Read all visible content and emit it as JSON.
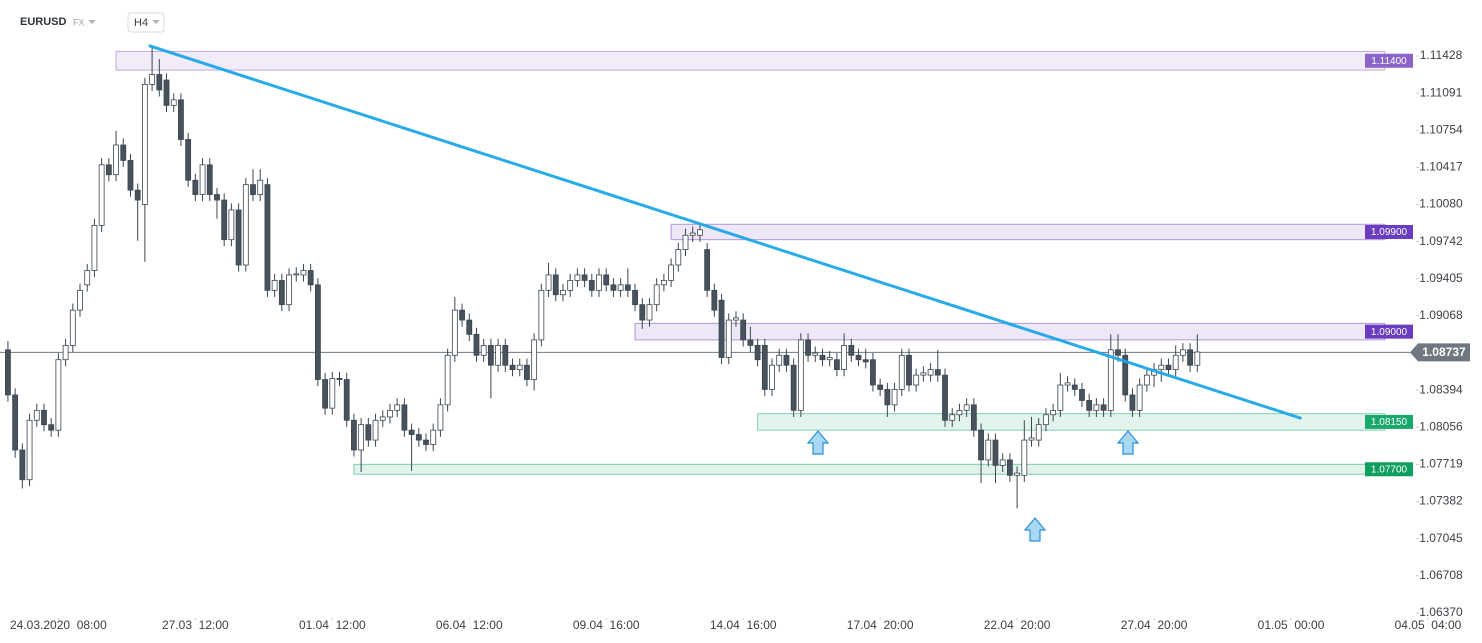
{
  "chart_data": {
    "type": "candlestick",
    "symbol": "EURUSD",
    "market": "FX",
    "interval": "H4",
    "open": [
      1.0876,
      1.0835,
      1.0785,
      1.0758,
      1.0812,
      1.0821,
      1.0808,
      1.0803,
      1.0867,
      1.088,
      1.0912,
      1.0935,
      1.0948,
      1.0989,
      1.1044,
      1.1035,
      1.1062,
      1.1048,
      1.1021,
      1.1008,
      1.1117,
      1.1126,
      1.1121,
      1.1098,
      1.1103,
      1.1067,
      1.103,
      1.1017,
      1.1044,
      1.1017,
      1.1012,
      1.0976,
      1.1003,
      1.0953,
      1.1026,
      1.1017,
      1.1026,
      1.093,
      1.0939,
      1.0917,
      1.0944,
      1.0944,
      1.0948,
      1.0935,
      1.0849,
      1.0823,
      1.085,
      1.0849,
      1.0812,
      1.0785,
      1.0808,
      1.0794,
      1.0812,
      1.0815,
      1.0821,
      1.0826,
      1.0803,
      1.0799,
      1.0794,
      1.079,
      1.0803,
      1.0826,
      1.0871,
      1.0912,
      1.0903,
      1.089,
      1.0871,
      1.088,
      1.0862,
      1.088,
      1.0862,
      1.0858,
      1.0862,
      1.0849,
      1.0885,
      1.093,
      1.0944,
      1.0926,
      1.093,
      1.0939,
      1.0944,
      1.0939,
      1.093,
      1.0944,
      1.0935,
      1.093,
      1.0935,
      1.093,
      1.0917,
      1.0903,
      1.0917,
      1.0935,
      1.0939,
      1.0953,
      1.0967,
      1.098,
      1.098,
      1.0967,
      1.093,
      1.0921,
      1.0869,
      1.0903,
      1.0903,
      1.0885,
      1.088,
      1.088,
      1.084,
      1.0862,
      1.0871,
      1.0862,
      1.0821,
      1.0885,
      1.0871,
      1.0871,
      1.0867,
      1.0867,
      1.0858,
      1.088,
      1.0871,
      1.0867,
      1.0867,
      1.0844,
      1.084,
      1.0826,
      1.084,
      1.0871,
      1.0844,
      1.0853,
      1.0853,
      1.0858,
      1.0853,
      1.0812,
      1.0817,
      1.0821,
      1.0826,
      1.0803,
      1.0776,
      1.0794,
      1.0771,
      1.0776,
      1.0762,
      1.0762,
      1.0794,
      1.0794,
      1.0808,
      1.0817,
      1.0821,
      1.0844,
      1.0844,
      1.084,
      1.083,
      1.0821,
      1.0826,
      1.0821,
      1.0876,
      1.0871,
      1.0835,
      1.0821,
      1.0844,
      1.0853,
      1.0858,
      1.0862,
      1.0858,
      1.0871,
      1.0876,
      1.0862
    ],
    "high": [
      1.0884,
      1.0841,
      1.0791,
      1.0818,
      1.0827,
      1.0827,
      1.0814,
      1.0873,
      1.0886,
      1.0918,
      1.0936,
      1.0954,
      1.0995,
      1.105,
      1.105,
      1.1075,
      1.1068,
      1.1054,
      1.1027,
      1.1123,
      1.1152,
      1.114,
      1.1127,
      1.1109,
      1.1109,
      1.1073,
      1.1036,
      1.105,
      1.105,
      1.1023,
      1.1018,
      1.1009,
      1.1009,
      1.1032,
      1.104,
      1.104,
      1.1032,
      1.0945,
      1.0945,
      1.095,
      1.0951,
      1.0954,
      1.0954,
      1.0941,
      1.0855,
      1.0856,
      1.0856,
      1.0855,
      1.0818,
      1.0814,
      1.0814,
      1.0818,
      1.0821,
      1.0827,
      1.0832,
      1.0832,
      1.0809,
      1.0805,
      1.08,
      1.0809,
      1.0832,
      1.0877,
      1.0924,
      1.0918,
      1.0909,
      1.0896,
      1.0886,
      1.0886,
      1.0886,
      1.0886,
      1.0868,
      1.0868,
      1.0868,
      1.0891,
      1.0936,
      1.0955,
      1.095,
      1.0936,
      1.0945,
      1.095,
      1.095,
      1.0945,
      1.095,
      1.095,
      1.0941,
      1.0941,
      1.095,
      1.0936,
      1.0923,
      1.0923,
      1.0941,
      1.0945,
      1.0959,
      1.0973,
      1.0986,
      1.0988,
      1.099,
      1.0973,
      1.0936,
      1.0927,
      1.0909,
      1.0911,
      1.0909,
      1.0897,
      1.0886,
      1.0886,
      1.0868,
      1.0877,
      1.0877,
      1.0868,
      1.0891,
      1.0891,
      1.0879,
      1.0877,
      1.0875,
      1.0873,
      1.0891,
      1.0886,
      1.0877,
      1.0877,
      1.0873,
      1.085,
      1.0846,
      1.0846,
      1.0877,
      1.0877,
      1.0859,
      1.0861,
      1.0864,
      1.0876,
      1.0859,
      1.0823,
      1.0827,
      1.0832,
      1.0832,
      1.0809,
      1.08,
      1.08,
      1.0782,
      1.0782,
      1.077,
      1.0812,
      1.0815,
      1.0814,
      1.0823,
      1.0827,
      1.0855,
      1.0852,
      1.085,
      1.0846,
      1.0836,
      1.0832,
      1.0832,
      1.089,
      1.089,
      1.0877,
      1.0841,
      1.085,
      1.0859,
      1.0864,
      1.0868,
      1.0868,
      1.088,
      1.0882,
      1.0882,
      1.089
    ],
    "low": [
      1.0829,
      1.0778,
      1.075,
      1.0752,
      1.0806,
      1.0802,
      1.0797,
      1.0797,
      1.0861,
      1.0874,
      1.0906,
      1.0929,
      1.0942,
      1.0983,
      1.1029,
      1.1029,
      1.1042,
      1.1015,
      1.0975,
      1.0956,
      1.1111,
      1.1106,
      1.1092,
      1.1092,
      1.1061,
      1.1024,
      1.1011,
      1.1011,
      1.1011,
      1.0995,
      1.097,
      1.097,
      1.0947,
      1.0947,
      1.1011,
      1.1011,
      1.0924,
      1.0924,
      1.0911,
      1.0911,
      1.0938,
      1.0938,
      1.0929,
      1.0843,
      1.0817,
      1.0817,
      1.0843,
      1.0806,
      1.0779,
      1.0765,
      1.0788,
      1.0788,
      1.0806,
      1.0809,
      1.0815,
      1.0797,
      1.0766,
      1.0788,
      1.0784,
      1.0784,
      1.0797,
      1.082,
      1.0865,
      1.0897,
      1.0884,
      1.0865,
      1.0865,
      1.0832,
      1.0856,
      1.0856,
      1.0852,
      1.0852,
      1.0843,
      1.0839,
      1.0879,
      1.0924,
      1.092,
      1.092,
      1.0924,
      1.0933,
      1.0933,
      1.0924,
      1.0924,
      1.0929,
      1.0924,
      1.0924,
      1.0924,
      1.0911,
      1.0895,
      1.0897,
      1.0911,
      1.0929,
      1.0933,
      1.0947,
      1.0961,
      1.0974,
      1.0974,
      1.0924,
      1.0906,
      1.0863,
      1.0863,
      1.0897,
      1.0879,
      1.0874,
      1.0861,
      1.0834,
      1.0834,
      1.0856,
      1.0856,
      1.0815,
      1.0815,
      1.0865,
      1.0865,
      1.0861,
      1.0861,
      1.0852,
      1.0852,
      1.0865,
      1.0861,
      1.0859,
      1.0838,
      1.0834,
      1.0815,
      1.082,
      1.0834,
      1.0838,
      1.0838,
      1.0847,
      1.0847,
      1.0847,
      1.0806,
      1.0806,
      1.0811,
      1.0815,
      1.0797,
      1.0755,
      1.077,
      1.0755,
      1.0765,
      1.0756,
      1.0732,
      1.0756,
      1.0788,
      1.0788,
      1.0802,
      1.0811,
      1.0815,
      1.0838,
      1.0834,
      1.0824,
      1.0815,
      1.0815,
      1.0815,
      1.0815,
      1.0865,
      1.0829,
      1.0815,
      1.0815,
      1.0838,
      1.0842,
      1.0847,
      1.0852,
      1.0852,
      1.0865,
      1.0856,
      1.0856
    ],
    "close": [
      1.0835,
      1.0785,
      1.0758,
      1.0812,
      1.0821,
      1.0808,
      1.0803,
      1.0867,
      1.088,
      1.0912,
      1.093,
      1.0948,
      1.0989,
      1.1044,
      1.1035,
      1.1062,
      1.1048,
      1.1021,
      1.1012,
      1.1117,
      1.1126,
      1.1112,
      1.1098,
      1.1103,
      1.1067,
      1.103,
      1.1017,
      1.1044,
      1.1017,
      1.1012,
      1.0976,
      1.1003,
      1.0953,
      1.1026,
      1.1017,
      1.103,
      1.093,
      1.0939,
      1.0917,
      1.0944,
      1.0945,
      1.0948,
      1.0935,
      1.0849,
      1.0823,
      1.085,
      1.0849,
      1.0812,
      1.0785,
      1.0808,
      1.0794,
      1.0812,
      1.0815,
      1.0821,
      1.0826,
      1.0803,
      1.0799,
      1.0794,
      1.079,
      1.0803,
      1.0826,
      1.0871,
      1.0912,
      1.0903,
      1.089,
      1.0871,
      1.088,
      1.0862,
      1.088,
      1.0862,
      1.0858,
      1.0862,
      1.0849,
      1.0885,
      1.093,
      1.0944,
      1.0926,
      1.093,
      1.0939,
      1.0944,
      1.0939,
      1.093,
      1.0944,
      1.0935,
      1.093,
      1.0935,
      1.093,
      1.0917,
      1.0903,
      1.0917,
      1.0935,
      1.0939,
      1.0953,
      1.0967,
      1.098,
      1.0982,
      1.0985,
      1.093,
      1.0912,
      1.0869,
      1.0903,
      1.0905,
      1.0885,
      1.088,
      1.0867,
      1.084,
      1.0862,
      1.0871,
      1.0862,
      1.0821,
      1.0885,
      1.0871,
      1.0873,
      1.0867,
      1.0869,
      1.0858,
      1.088,
      1.0871,
      1.0867,
      1.0865,
      1.0844,
      1.084,
      1.0826,
      1.084,
      1.0871,
      1.0844,
      1.0853,
      1.0855,
      1.0858,
      1.0853,
      1.0812,
      1.0817,
      1.0821,
      1.0826,
      1.0803,
      1.0776,
      1.0794,
      1.0771,
      1.0776,
      1.0762,
      1.0764,
      1.0794,
      1.0796,
      1.0808,
      1.0817,
      1.0821,
      1.0844,
      1.0846,
      1.084,
      1.083,
      1.0821,
      1.0826,
      1.0821,
      1.0876,
      1.0871,
      1.0835,
      1.0821,
      1.0844,
      1.0853,
      1.0858,
      1.0862,
      1.0858,
      1.0871,
      1.0876,
      1.0862,
      1.0874
    ],
    "up_color": "#ffffff",
    "down_color": "#47525c",
    "wick_color": "#3c4650",
    "ylim": [
      1.06306,
      1.11846
    ],
    "yticks": [
      1.11428,
      1.11091,
      1.10754,
      1.10417,
      {
        "value": 1.1008,
        "label": "1.10080"
      },
      1.09742,
      1.09405,
      1.09068,
      1.08394,
      1.08056,
      1.07719,
      1.07382,
      1.07045,
      1.06708,
      {
        "value": 1.0637,
        "label": "1.06370"
      }
    ],
    "xlim": [
      -1.1,
      195.2
    ],
    "xticks": [
      {
        "value": 7,
        "label": "24.03.2020  08:00"
      },
      {
        "value": 26,
        "label": "27.03  12:00"
      },
      {
        "value": 45,
        "label": "01.04  12:00"
      },
      {
        "value": 64,
        "label": "06.04  12:00"
      },
      {
        "value": 83,
        "label": "09.04  16:00"
      },
      {
        "value": 102,
        "label": "14.04  16:00"
      },
      {
        "value": 121,
        "label": "17.04  20:00"
      },
      {
        "value": 140,
        "label": "22.04  20:00"
      },
      {
        "value": 159,
        "label": "27.04  20:00"
      },
      {
        "value": 178,
        "label": "01.05  00:00"
      },
      {
        "value": 197,
        "label": "04.05  04:00"
      }
    ],
    "zones": [
      {
        "label": "1.11400",
        "low": 1.113,
        "high": 1.1147,
        "x0": 15,
        "x1": 191,
        "color": "#8a64c8"
      },
      {
        "label": "1.09900",
        "low": 1.0976,
        "high": 1.099,
        "x0": 92,
        "x1": 191,
        "color": "#6a3cbf"
      },
      {
        "label": "1.09000",
        "low": 1.0885,
        "high": 1.09,
        "x0": 87,
        "x1": 191,
        "color": "#6a3cbf"
      },
      {
        "label": "1.08150",
        "low": 1.0803,
        "high": 1.0818,
        "x0": 104,
        "x1": 191,
        "color": "#18a86b"
      },
      {
        "label": "1.07700",
        "low": 1.0763,
        "high": 1.0772,
        "x0": 48,
        "x1": 191,
        "color": "#0e9f5e"
      }
    ],
    "trendline": {
      "x": [
        19.7,
        179.3
      ],
      "y": [
        1.1152,
        1.0814
      ],
      "color": "#1ea7e8"
    },
    "current_price": 1.08737,
    "current_color": "#6f7880"
  }
}
